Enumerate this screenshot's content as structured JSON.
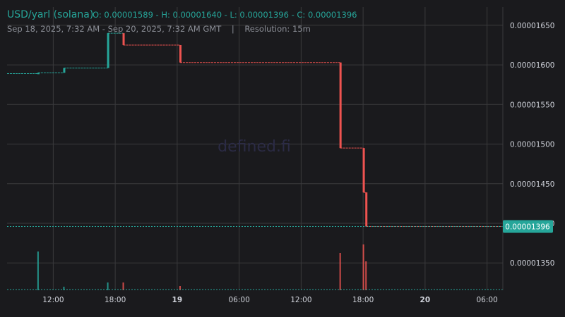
{
  "header": {
    "pair": "USD/yarl (solana)",
    "ohlc": "O: 0.00001589 - H: 0.00001640 - L: 0.00001396 - C: 0.00001396",
    "subtitle": "Sep 18, 2025, 7:32 AM - Sep 20, 2025, 7:32 AM GMT    |    Resolution: 15m"
  },
  "watermark": "defined.fi",
  "colors": {
    "background": "#1a1a1d",
    "up": "#26a69a",
    "down": "#ef5350",
    "grid": "#3a3a3d",
    "text": "#d1d4dc",
    "accent": "#26a69a",
    "price_label_bg": "#26a69a"
  },
  "chart_data": {
    "type": "candlestick",
    "x_axis": {
      "unit": "hours since Sep 18, 2025 07:32 GMT",
      "tick_labels": [
        {
          "x": 4.47,
          "label": "12:00",
          "bold": false
        },
        {
          "x": 10.47,
          "label": "18:00",
          "bold": false
        },
        {
          "x": 16.47,
          "label": "19",
          "bold": true
        },
        {
          "x": 22.47,
          "label": "06:00",
          "bold": false
        },
        {
          "x": 28.47,
          "label": "12:00",
          "bold": false
        },
        {
          "x": 34.47,
          "label": "18:00",
          "bold": false
        },
        {
          "x": 40.47,
          "label": "20",
          "bold": true
        },
        {
          "x": 46.47,
          "label": "06:00",
          "bold": false
        }
      ],
      "range": [
        0,
        48
      ]
    },
    "y_axis": {
      "range": [
        1.3155e-05,
        1.673e-05
      ],
      "ticks": [
        1.35e-05,
        1.4e-05,
        1.45e-05,
        1.5e-05,
        1.55e-05,
        1.6e-05,
        1.65e-05
      ],
      "tick_labels": [
        "0.00001350",
        "0.00001400",
        "0.00001450",
        "0.00001500",
        "0.00001550",
        "0.00001600",
        "0.00001650"
      ],
      "grid": true
    },
    "last_price": {
      "value": 1.396e-05,
      "label": "0.00001396"
    },
    "segments": [
      {
        "start": 0.0,
        "end": 3.0,
        "price": 1.589e-05,
        "color": "up"
      },
      {
        "start": 3.0,
        "end": 5.5,
        "price": 1.59e-05,
        "color": "up"
      },
      {
        "start": 5.5,
        "end": 9.75,
        "price": 1.596e-05,
        "color": "up"
      },
      {
        "start": 9.75,
        "end": 11.25,
        "price": 1.64e-05,
        "color": "up"
      },
      {
        "start": 11.25,
        "end": 16.75,
        "price": 1.625e-05,
        "color": "down"
      },
      {
        "start": 16.75,
        "end": 32.25,
        "price": 1.603e-05,
        "color": "down"
      },
      {
        "start": 32.25,
        "end": 34.5,
        "price": 1.495e-05,
        "color": "down"
      },
      {
        "start": 34.5,
        "end": 34.75,
        "price": 1.439e-05,
        "color": "down"
      },
      {
        "start": 34.75,
        "end": 48.0,
        "price": 1.396e-05,
        "color": "down"
      }
    ],
    "candles": [
      {
        "t": 3.0,
        "o": 1.589e-05,
        "c": 1.59e-05,
        "dir": "up"
      },
      {
        "t": 5.5,
        "o": 1.59e-05,
        "c": 1.596e-05,
        "dir": "up"
      },
      {
        "t": 9.75,
        "o": 1.596e-05,
        "c": 1.64e-05,
        "dir": "up"
      },
      {
        "t": 11.25,
        "o": 1.64e-05,
        "c": 1.625e-05,
        "dir": "down"
      },
      {
        "t": 16.75,
        "o": 1.625e-05,
        "c": 1.603e-05,
        "dir": "down"
      },
      {
        "t": 32.25,
        "o": 1.603e-05,
        "c": 1.495e-05,
        "dir": "down"
      },
      {
        "t": 34.5,
        "o": 1.495e-05,
        "c": 1.439e-05,
        "dir": "down"
      },
      {
        "t": 34.75,
        "o": 1.439e-05,
        "c": 1.396e-05,
        "dir": "down"
      }
    ],
    "volumes": [
      {
        "t": 3.0,
        "v": 0.55,
        "dir": "up"
      },
      {
        "t": 5.5,
        "v": 0.05,
        "dir": "up"
      },
      {
        "t": 9.75,
        "v": 0.11,
        "dir": "up"
      },
      {
        "t": 11.25,
        "v": 0.11,
        "dir": "down"
      },
      {
        "t": 16.75,
        "v": 0.06,
        "dir": "down"
      },
      {
        "t": 32.25,
        "v": 0.53,
        "dir": "down"
      },
      {
        "t": 34.5,
        "v": 0.65,
        "dir": "down"
      },
      {
        "t": 34.75,
        "v": 0.41,
        "dir": "down"
      }
    ]
  }
}
